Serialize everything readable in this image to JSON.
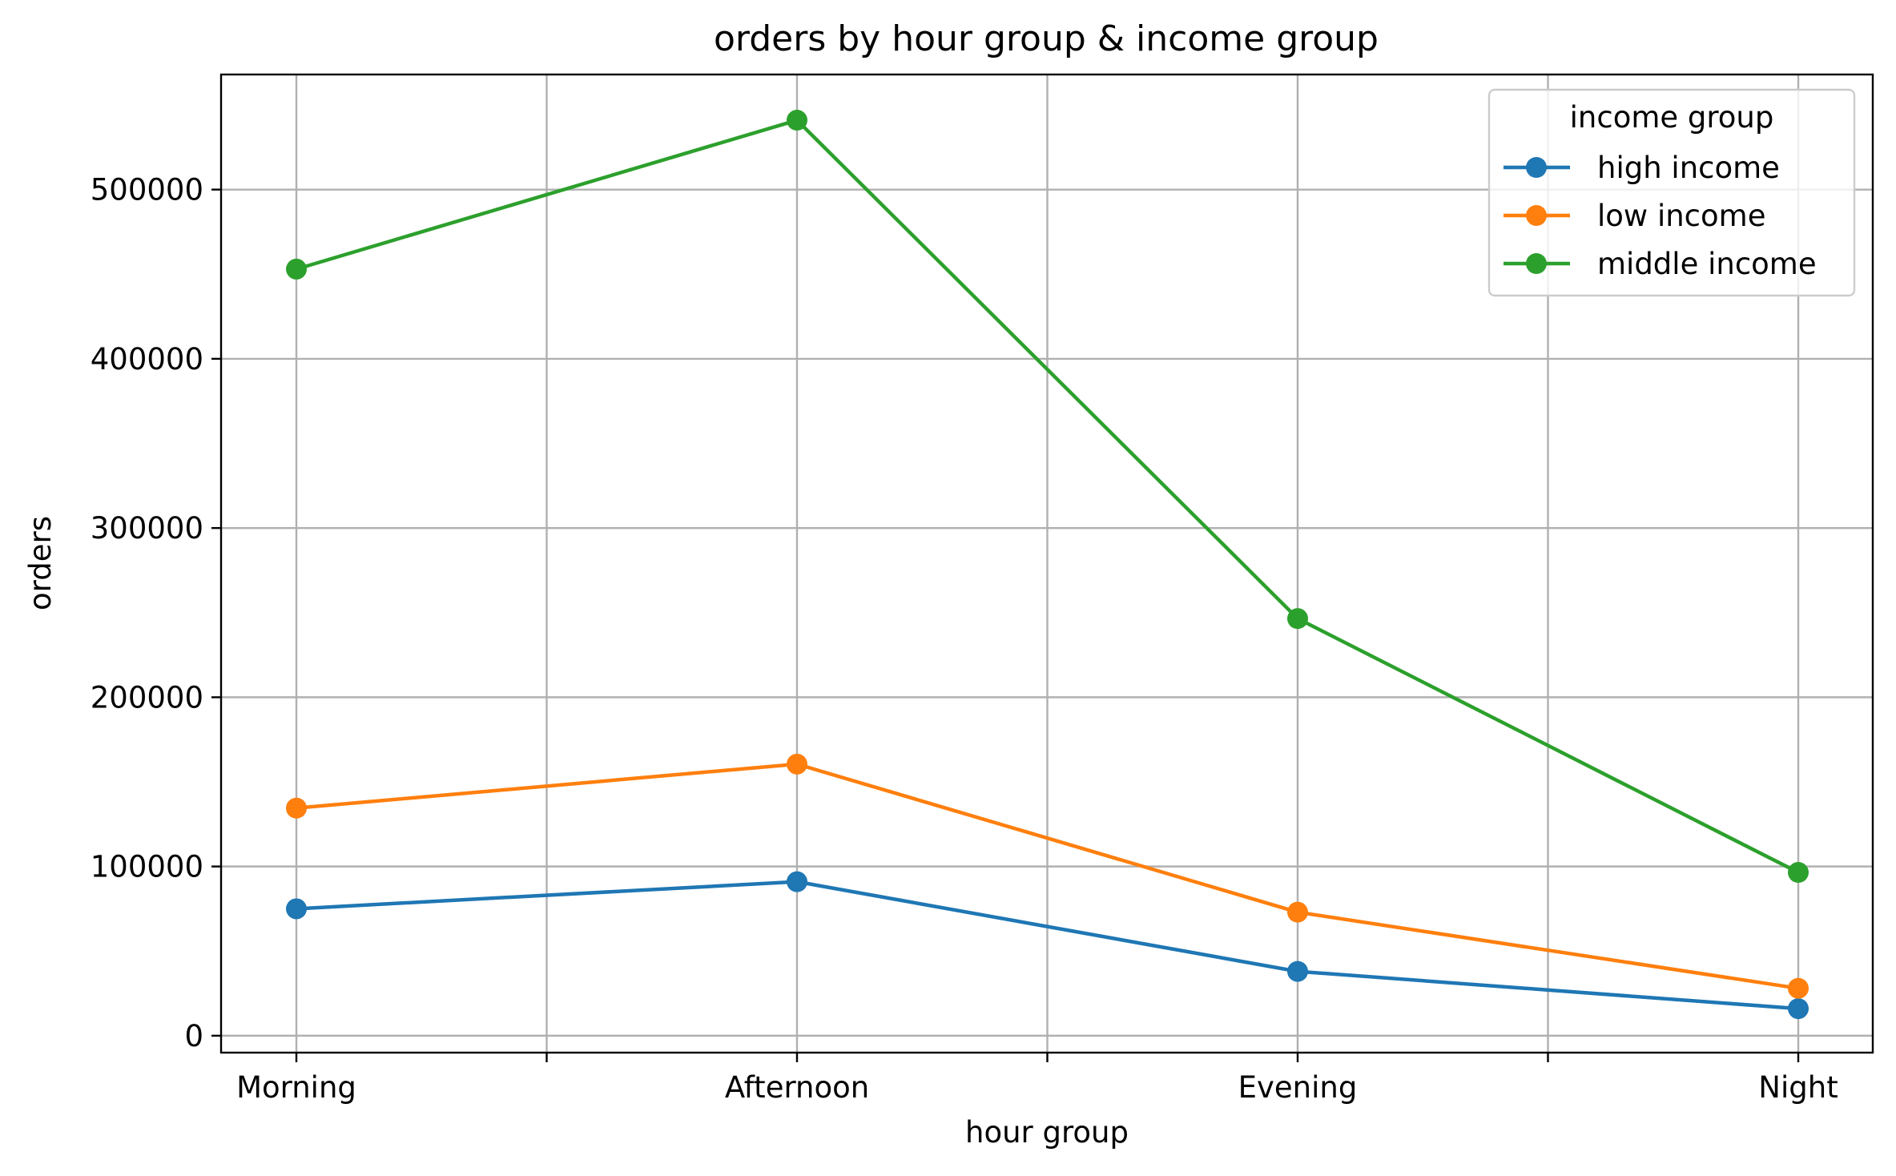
{
  "chart_data": {
    "type": "line",
    "title": "orders by hour group & income group",
    "xlabel": "hour group",
    "ylabel": "orders",
    "categories": [
      "Morning",
      "Afternoon",
      "Evening",
      "Night"
    ],
    "minor_ticks": [
      0.5,
      1.5,
      2.5
    ],
    "ylim": [
      -10000,
      568000
    ],
    "yticks": [
      0,
      100000,
      200000,
      300000,
      400000,
      500000
    ],
    "ytick_labels": [
      "0",
      "100000",
      "200000",
      "300000",
      "400000",
      "500000"
    ],
    "grid": true,
    "legend": {
      "title": "income group",
      "placement": "upper right"
    },
    "series": [
      {
        "name": "high income",
        "color": "#1f77b4",
        "values": [
          75000,
          91000,
          38000,
          16000
        ]
      },
      {
        "name": "low income",
        "color": "#ff7f0e",
        "values": [
          134500,
          160500,
          73000,
          28000
        ]
      },
      {
        "name": "middle income",
        "color": "#2ca02c",
        "values": [
          453000,
          541000,
          246500,
          96500
        ]
      }
    ]
  }
}
